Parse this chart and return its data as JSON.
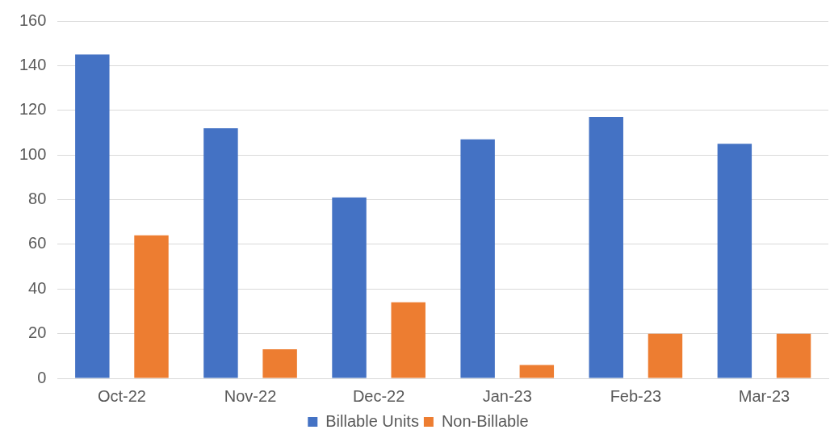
{
  "chart_data": {
    "type": "bar",
    "categories": [
      "Oct-22",
      "Nov-22",
      "Dec-22",
      "Jan-23",
      "Feb-23",
      "Mar-23"
    ],
    "series": [
      {
        "name": "Billable Units",
        "color": "#4472c4",
        "values": [
          145,
          112,
          81,
          107,
          117,
          105
        ]
      },
      {
        "name": "Non-Billable",
        "color": "#ed7d31",
        "values": [
          64,
          13,
          34,
          6,
          20,
          20
        ]
      }
    ],
    "ylim": [
      0,
      160
    ],
    "yticks": [
      0,
      20,
      40,
      60,
      80,
      100,
      120,
      140,
      160
    ],
    "grid": "y",
    "legend": "bottom"
  }
}
